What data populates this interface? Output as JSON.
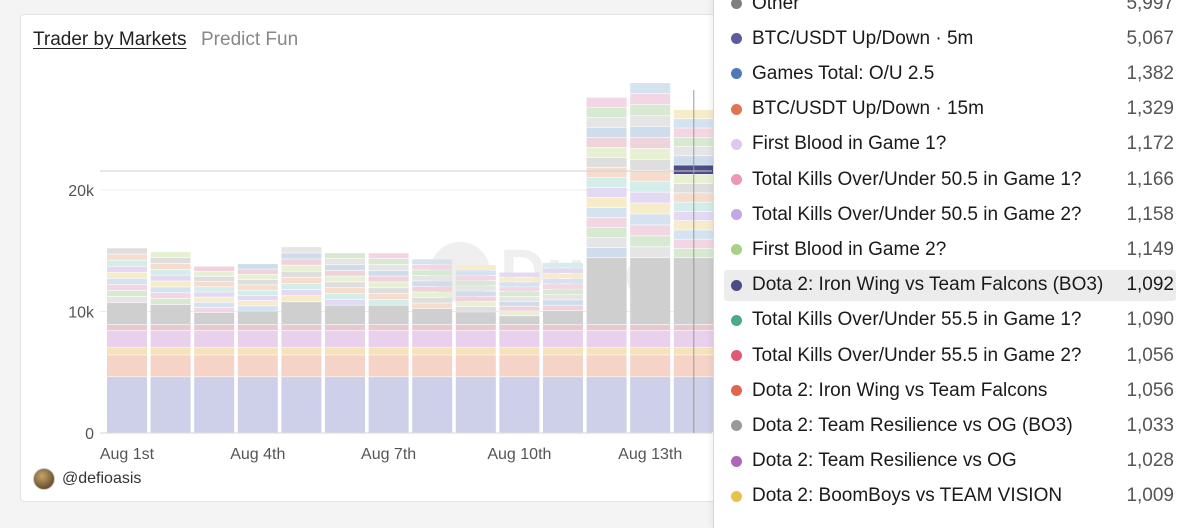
{
  "card": {
    "title": "Trader by Markets",
    "subtitle": "Predict Fun",
    "author": "@defioasis"
  },
  "chart_data": {
    "type": "bar",
    "stacked": true,
    "ylim": [
      0,
      31000
    ],
    "yticks": [
      0,
      10000,
      20000
    ],
    "yticklabels": [
      "0",
      "10k",
      "20k"
    ],
    "grid": true,
    "x_tick_labels": [
      "Aug 1st",
      "Aug 4th",
      "Aug 7th",
      "Aug 10th",
      "Aug 13th"
    ],
    "categories": [
      "Aug 1",
      "Aug 2",
      "Aug 3",
      "Aug 4",
      "Aug 5",
      "Aug 6",
      "Aug 7",
      "Aug 8",
      "Aug 9",
      "Aug 10",
      "Aug 11",
      "Aug 12",
      "Aug 13",
      "Aug 14"
    ],
    "totals": [
      15200,
      14900,
      13700,
      13900,
      15300,
      14800,
      14800,
      14300,
      13800,
      13200,
      14000,
      27600,
      28800,
      26600
    ],
    "highlighted_category": "Aug 14",
    "watermark": "Dune"
  },
  "tooltip": {
    "items": [
      {
        "label": "Other",
        "value": "5,997",
        "color": "#7f7f7f"
      },
      {
        "label": "BTC/USDT Up/Down · 5m",
        "value": "5,067",
        "color": "#5b5b9e"
      },
      {
        "label": "Games Total: O/U 2.5",
        "value": "1,382",
        "color": "#4f79b9"
      },
      {
        "label": "BTC/USDT Up/Down · 15m",
        "value": "1,329",
        "color": "#e07454"
      },
      {
        "label": "First Blood in Game 1?",
        "value": "1,172",
        "color": "#e3c6f0"
      },
      {
        "label": "Total Kills Over/Under 50.5 in Game 1?",
        "value": "1,166",
        "color": "#ec97b5"
      },
      {
        "label": "Total Kills Over/Under 50.5 in Game 2?",
        "value": "1,158",
        "color": "#c1a9e6"
      },
      {
        "label": "First Blood in Game 2?",
        "value": "1,149",
        "color": "#a7d08a"
      },
      {
        "label": "Dota 2: Iron Wing vs Team Falcons (BO3)",
        "value": "1,092",
        "color": "#4c4c86",
        "highlight": true
      },
      {
        "label": "Total Kills Over/Under 55.5 in Game 1?",
        "value": "1,090",
        "color": "#4aab8a"
      },
      {
        "label": "Total Kills Over/Under 55.5 in Game 2?",
        "value": "1,056",
        "color": "#df5b74"
      },
      {
        "label": "Dota 2: Iron Wing vs Team Falcons",
        "value": "1,056",
        "color": "#e0654c"
      },
      {
        "label": "Dota 2: Team Resilience vs OG (BO3)",
        "value": "1,033",
        "color": "#9a9a9a"
      },
      {
        "label": "Dota 2: Team Resilience vs OG",
        "value": "1,028",
        "color": "#b066b8"
      },
      {
        "label": "Dota 2: BoomBoys vs TEAM VISION",
        "value": "1,009",
        "color": "#e9c14a"
      }
    ]
  }
}
